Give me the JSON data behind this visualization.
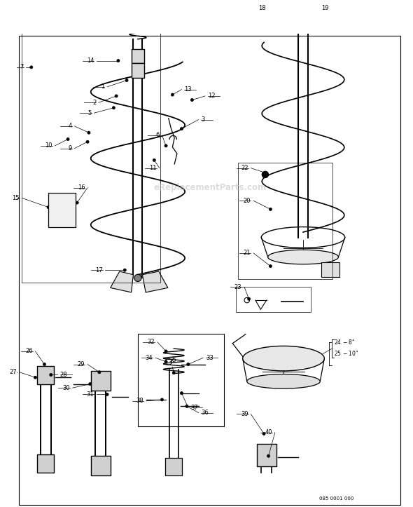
{
  "title": "",
  "background_color": "#ffffff",
  "border_color": "#000000",
  "line_color": "#000000",
  "watermark_text": "eReplacementParts.com",
  "watermark_color": "#cccccc",
  "catalog_number": "085 0001 000",
  "figsize": [
    5.9,
    7.23
  ],
  "dpi": 100
}
